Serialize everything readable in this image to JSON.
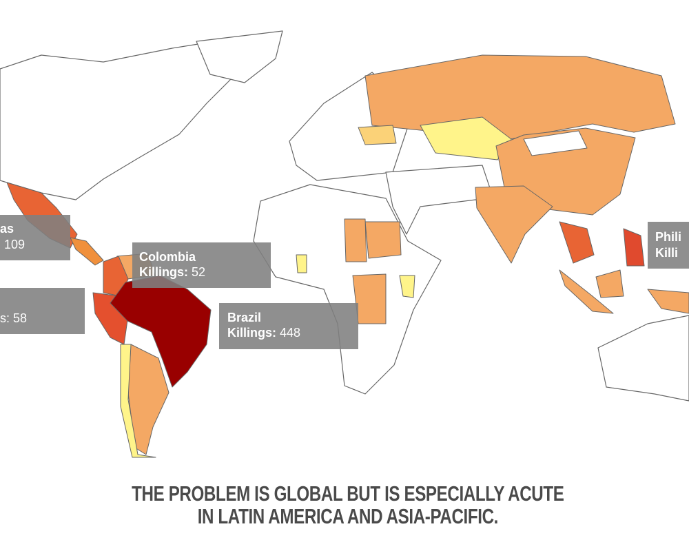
{
  "tooltips": [
    {
      "name": "as",
      "value_text": "109"
    },
    {
      "name": "Colombia",
      "label": "Killings:",
      "value": 52
    },
    {
      "text": "s: 58"
    },
    {
      "name": "Brazil",
      "label": "Killings:",
      "value": 448
    },
    {
      "name": "Phili",
      "label": "Killi"
    }
  ],
  "caption": {
    "line1": "THE PROBLEM IS GLOBAL BUT IS ESPECIALLY ACUTE",
    "line2": "IN LATIN AMERICA AND ASIA-PACIFIC."
  }
}
